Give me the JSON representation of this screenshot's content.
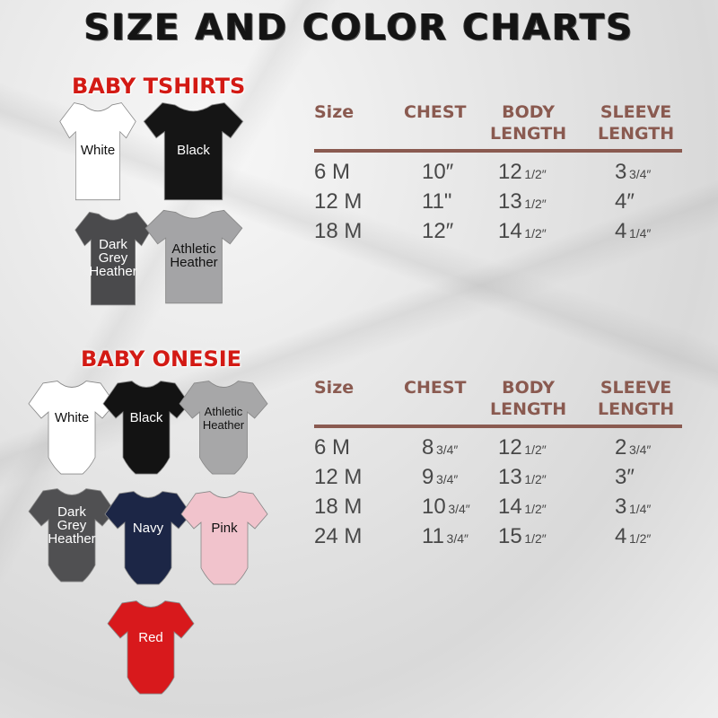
{
  "title": "SIZE AND COLOR CHARTS",
  "tshirts": {
    "label": "BABY TSHIRTS",
    "colors": [
      {
        "name": "White",
        "fill": "#ffffff",
        "text": "#111111"
      },
      {
        "name": "Black",
        "fill": "#151515",
        "text": "#ffffff"
      },
      {
        "name": "Dark Grey Heather",
        "fill": "#4a4a4c",
        "text": "#ffffff"
      },
      {
        "name": "Athletic Heather",
        "fill": "#a4a4a6",
        "text": "#111111"
      }
    ]
  },
  "onesies": {
    "label": "BABY ONESIE",
    "colors": [
      {
        "name": "White",
        "fill": "#ffffff",
        "text": "#111111"
      },
      {
        "name": "Black",
        "fill": "#131313",
        "text": "#ffffff"
      },
      {
        "name": "Athletic Heather",
        "fill": "#a7a7a8",
        "text": "#111111"
      },
      {
        "name": "Dark Grey Heather",
        "fill": "#505052",
        "text": "#ffffff"
      },
      {
        "name": "Navy",
        "fill": "#1c2646",
        "text": "#ffffff"
      },
      {
        "name": "Pink",
        "fill": "#f1c3cc",
        "text": "#111111"
      },
      {
        "name": "Red",
        "fill": "#d8191c",
        "text": "#ffffff"
      }
    ]
  },
  "tshirt_table": {
    "headers": [
      "Size",
      "CHEST",
      "BODY\nLENGTH",
      "SLEEVE\nLENGTH"
    ],
    "rows": [
      [
        "6 M",
        "10″",
        "12|1/2″",
        "3|3/4″"
      ],
      [
        "12 M",
        "11\"",
        "13|1/2″",
        "4″"
      ],
      [
        "18 M",
        "12″",
        "14|1/2″",
        "4|1/4″"
      ]
    ]
  },
  "onesie_table": {
    "headers": [
      "Size",
      "CHEST",
      "BODY\nLENGTH",
      "SLEEVE\nLENGTH"
    ],
    "rows": [
      [
        "6 M",
        "8|3/4″",
        "12|1/2″",
        "2|3/4″"
      ],
      [
        "12 M",
        "9|3/4″",
        "13|1/2″",
        "3″"
      ],
      [
        "18 M",
        "10|3/4″",
        "14|1/2″",
        "3|1/4″"
      ],
      [
        "24 M",
        "11|3/4″",
        "15|1/2″",
        "4|1/2″"
      ]
    ]
  },
  "colors": {
    "accent_red": "#d31a14",
    "header_brown": "#8a5a50"
  }
}
